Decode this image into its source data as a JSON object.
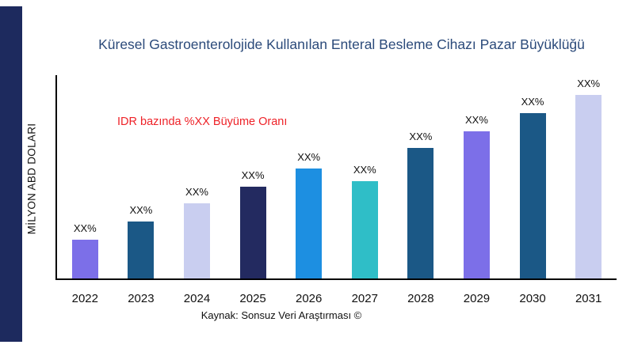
{
  "title": "Küresel Gastroenterolojide Kullanılan Enteral Besleme Cihazı Pazar Büyüklüğü",
  "title_color": "#2b4a7a",
  "y_axis_label": "MİLYON ABD DOLARI",
  "annotation": {
    "text": "IDR bazında %XX Büyüme Oranı",
    "color": "#ee2228"
  },
  "source": "Kaynak: Sonsuz Veri Araştırması ©",
  "accent_stripe_color": "#1d2a5e",
  "chart_data": {
    "type": "bar",
    "title": "Küresel Gastroenterolojide Kullanılan Enteral Besleme Cihazı Pazar Büyüklüğü",
    "xlabel": "",
    "ylabel": "MİLYON ABD DOLARI",
    "categories": [
      "2022",
      "2023",
      "2024",
      "2025",
      "2026",
      "2027",
      "2028",
      "2029",
      "2030",
      "2031"
    ],
    "values": [
      21,
      31,
      41,
      50,
      60,
      53,
      71,
      80,
      90,
      100
    ],
    "ylim": [
      0,
      100
    ],
    "bar_labels": [
      "XX%",
      "XX%",
      "XX%",
      "XX%",
      "XX%",
      "XX%",
      "XX%",
      "XX%",
      "XX%",
      "XX%"
    ],
    "bar_colors": [
      "#7c6fe8",
      "#1b5886",
      "#c9cef0",
      "#232a60",
      "#1d8fe1",
      "#2fbec7",
      "#1b5886",
      "#7c6fe8",
      "#1b5886",
      "#c9cef0"
    ],
    "grid": false,
    "legend": "none"
  }
}
